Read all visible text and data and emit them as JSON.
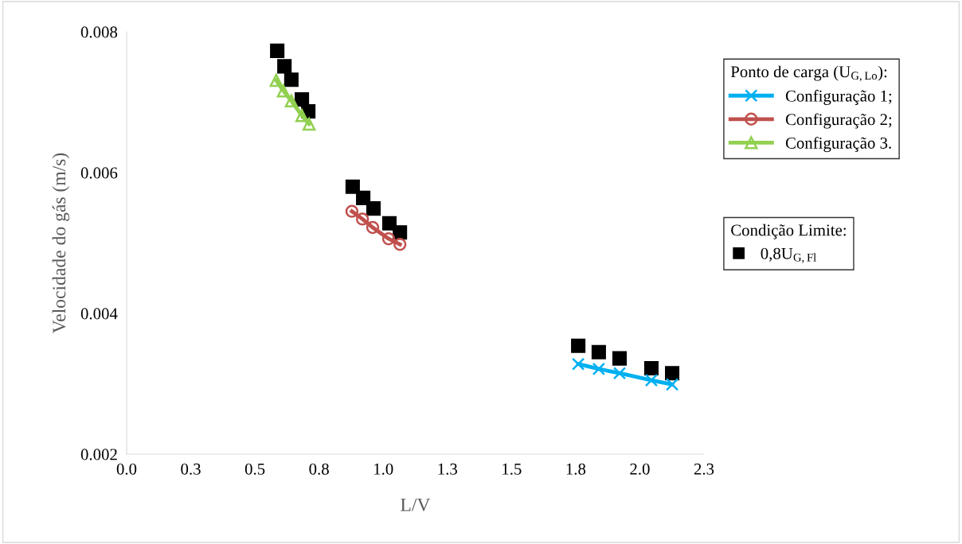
{
  "chart_data": {
    "type": "line",
    "xlabel": "L/V",
    "ylabel": "Velocidade do gás (m/s)",
    "xlim": [
      0,
      2.25
    ],
    "xticks": [
      {
        "value": 0,
        "label": "0.0"
      },
      {
        "value": 0.25,
        "label": "0.3"
      },
      {
        "value": 0.5,
        "label": "0.5"
      },
      {
        "value": 0.75,
        "label": "0.8"
      },
      {
        "value": 1.0,
        "label": "1.0"
      },
      {
        "value": 1.25,
        "label": "1.3"
      },
      {
        "value": 1.5,
        "label": "1.5"
      },
      {
        "value": 1.75,
        "label": "1.8"
      },
      {
        "value": 2.0,
        "label": "2.0"
      },
      {
        "value": 2.25,
        "label": "2.3"
      }
    ],
    "ylim": [
      0.002,
      0.008
    ],
    "yticks": [
      0.002,
      0.004,
      0.006,
      0.008
    ],
    "grid": false,
    "legend": "top right",
    "legend_title": "Ponto de carga (U$_{G,Lo}$):",
    "annotations": [
      "Condição Limite:"
    ],
    "series": [
      {
        "name": "Configuração 1;",
        "marker": "cross",
        "color": "#00b0f0",
        "x": [
          1.76,
          1.84,
          1.921,
          2.045,
          2.126
        ],
        "values": [
          0.00328,
          0.00321,
          0.00315,
          0.00305,
          0.00299
        ]
      },
      {
        "name": "Configuração 2;",
        "marker": "circle",
        "color": "#c0504d",
        "x": [
          0.878,
          0.919,
          0.959,
          1.021,
          1.065
        ],
        "values": [
          0.00545,
          0.00534,
          0.00522,
          0.00506,
          0.00498
        ]
      },
      {
        "name": "Configuração 3.",
        "marker": "triangle",
        "color": "#92d050",
        "x": [
          0.583,
          0.611,
          0.642,
          0.683,
          0.711
        ],
        "values": [
          0.00731,
          0.00716,
          0.00702,
          0.00681,
          0.00669
        ]
      },
      {
        "name": "0,8U$_{G,Fl}$",
        "type": "scatter",
        "marker": "square",
        "color": "#000000",
        "x": [
          0.587,
          0.615,
          0.642,
          0.683,
          0.708,
          0.881,
          0.922,
          0.962,
          1.024,
          1.065,
          1.76,
          1.84,
          1.921,
          2.045,
          2.126
        ],
        "values": [
          0.00773,
          0.00751,
          0.00732,
          0.00704,
          0.00687,
          0.0058,
          0.00564,
          0.00549,
          0.00528,
          0.00515,
          0.00354,
          0.00345,
          0.00336,
          0.00322,
          0.00315
        ]
      }
    ]
  }
}
